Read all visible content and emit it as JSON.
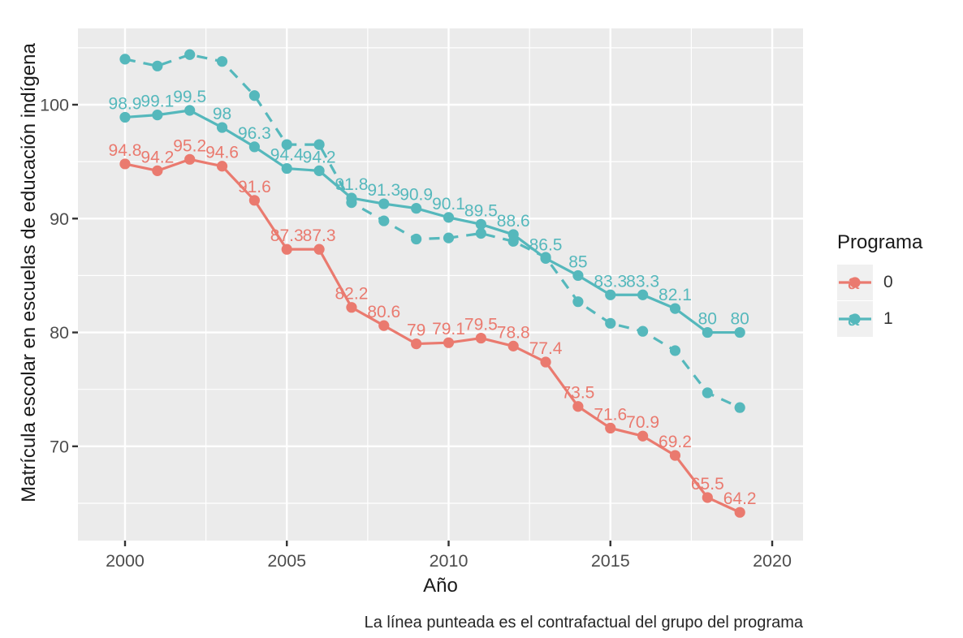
{
  "legend": {
    "title": "Programa",
    "items": [
      {
        "label": "0",
        "color": "#EA7A6F"
      },
      {
        "label": "1",
        "color": "#55B8BC"
      }
    ]
  },
  "caption": "La línea punteada es el contrafactual del grupo del programa",
  "chart_data": {
    "type": "line",
    "title": "",
    "xlabel": "Año",
    "ylabel": "Matrícula escolar en escuelas de educación indígena",
    "caption": "La línea punteada es el contrafactual del grupo del programa",
    "x": [
      2000,
      2001,
      2002,
      2003,
      2004,
      2005,
      2006,
      2007,
      2008,
      2009,
      2010,
      2011,
      2012,
      2013,
      2014,
      2015,
      2016,
      2017,
      2018,
      2019
    ],
    "x_ticks": [
      2000,
      2005,
      2010,
      2015,
      2020
    ],
    "x_minor": [
      2002.5,
      2007.5,
      2012.5,
      2017.5
    ],
    "xlim": [
      1998.545,
      2020.953
    ],
    "y_ticks": [
      70,
      80,
      90,
      100
    ],
    "y_minor": [
      65,
      75,
      85,
      95,
      105
    ],
    "ylim": [
      61.72,
      106.7
    ],
    "grid": true,
    "legend_position": "right",
    "panel_bg": "#EBEBEB",
    "grid_color": "#FFFFFF",
    "tick_label_color": "#4D4D4D",
    "series": [
      {
        "name": "1-contrafactual",
        "program": "1",
        "color": "#55B8BC",
        "line": "dashed",
        "labeled": false,
        "values": [
          104.0,
          103.4,
          104.4,
          103.8,
          100.8,
          96.5,
          96.5,
          91.4,
          89.8,
          88.2,
          88.3,
          88.7,
          88.0,
          86.6,
          82.7,
          80.8,
          80.1,
          78.4,
          74.7,
          73.4
        ]
      },
      {
        "name": "0",
        "program": "0",
        "color": "#EA7A6F",
        "line": "solid",
        "labeled": true,
        "values": [
          94.8,
          94.2,
          95.2,
          94.6,
          91.6,
          87.3,
          87.3,
          82.2,
          80.6,
          79,
          79.1,
          79.5,
          78.8,
          77.4,
          73.5,
          71.6,
          70.9,
          69.2,
          65.5,
          64.2
        ],
        "labels": [
          "94.8",
          "94.2",
          "95.2",
          "94.6",
          "91.6",
          "87.3",
          "87.3",
          "82.2",
          "80.6",
          "79",
          "79.1",
          "79.5",
          "78.8",
          "77.4",
          "73.5",
          "71.6",
          "70.9",
          "69.2",
          "65.5",
          "64.2"
        ]
      },
      {
        "name": "1",
        "program": "1",
        "color": "#55B8BC",
        "line": "solid",
        "labeled": true,
        "values": [
          98.9,
          99.1,
          99.5,
          98,
          96.3,
          94.4,
          94.2,
          91.8,
          91.3,
          90.9,
          90.1,
          89.5,
          88.6,
          86.5,
          85,
          83.3,
          83.3,
          82.1,
          80,
          80
        ],
        "labels": [
          "98.9",
          "99.1",
          "99.5",
          "98",
          "96.3",
          "94.4",
          "94.2",
          "91.8",
          "91.3",
          "90.9",
          "90.1",
          "89.5",
          "88.6",
          "86.5",
          "85",
          "83.3",
          "83.3",
          "82.1",
          "80",
          "80"
        ]
      }
    ]
  }
}
